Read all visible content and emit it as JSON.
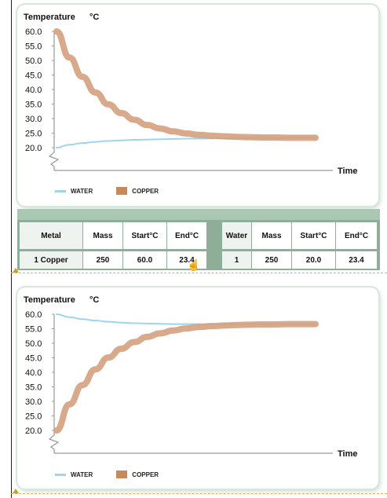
{
  "charts": [
    {
      "ylabel": "Temperature",
      "unit": "°C",
      "xlabel": "Time",
      "yticks": [
        "60.0",
        "55.0",
        "50.0",
        "45.0",
        "40.0",
        "35.0",
        "30.0",
        "25.0",
        "20.0"
      ],
      "legend": {
        "water": "WATER",
        "copper": "COPPER"
      }
    },
    {
      "ylabel": "Temperature",
      "unit": "°C",
      "xlabel": "Time",
      "yticks": [
        "60.0",
        "55.0",
        "50.0",
        "45.0",
        "40.0",
        "35.0",
        "30.0",
        "25.0",
        "20.0"
      ],
      "legend": {
        "water": "WATER",
        "copper": "COPPER"
      }
    }
  ],
  "chart_data": [
    {
      "type": "line",
      "ylabel": "Temperature °C",
      "xlabel": "Time",
      "ylim": [
        20,
        60
      ],
      "series": [
        {
          "name": "WATER",
          "color": "#9fd4ec",
          "x": [
            0,
            1,
            2,
            3,
            4,
            5,
            6,
            7,
            8,
            9,
            10,
            11,
            12,
            13,
            14,
            15,
            16,
            17,
            18,
            19,
            20
          ],
          "values": [
            20.0,
            21.0,
            21.6,
            22.0,
            22.3,
            22.5,
            22.7,
            22.8,
            22.9,
            23.0,
            23.1,
            23.1,
            23.2,
            23.2,
            23.3,
            23.3,
            23.3,
            23.3,
            23.4,
            23.4,
            23.4
          ]
        },
        {
          "name": "COPPER",
          "color": "#c9885a",
          "x": [
            0,
            1,
            2,
            3,
            4,
            5,
            6,
            7,
            8,
            9,
            10,
            11,
            12,
            13,
            14,
            15,
            16,
            17,
            18,
            19,
            20
          ],
          "values": [
            60.0,
            51.0,
            44.4,
            39.0,
            34.9,
            31.9,
            29.6,
            27.8,
            26.6,
            25.6,
            24.9,
            24.4,
            24.1,
            23.9,
            23.7,
            23.6,
            23.5,
            23.5,
            23.4,
            23.4,
            23.4
          ]
        }
      ]
    },
    {
      "type": "line",
      "ylabel": "Temperature °C",
      "xlabel": "Time",
      "ylim": [
        20,
        60
      ],
      "series": [
        {
          "name": "WATER",
          "color": "#9fd4ec",
          "x": [
            0,
            1,
            2,
            3,
            4,
            5,
            6,
            7,
            8,
            9,
            10,
            11,
            12,
            13,
            14,
            15,
            16,
            17,
            18,
            19,
            20
          ],
          "values": [
            60.0,
            59.0,
            58.3,
            57.8,
            57.4,
            57.1,
            56.9,
            56.8,
            56.7,
            56.6,
            56.6,
            56.6,
            56.6,
            56.6,
            56.6,
            56.6,
            56.6,
            56.6,
            56.6,
            56.6,
            56.6
          ]
        },
        {
          "name": "COPPER",
          "color": "#c9885a",
          "x": [
            0,
            1,
            2,
            3,
            4,
            5,
            6,
            7,
            8,
            9,
            10,
            11,
            12,
            13,
            14,
            15,
            16,
            17,
            18,
            19,
            20
          ],
          "values": [
            20.0,
            29.0,
            35.6,
            41.0,
            45.1,
            48.1,
            50.4,
            52.2,
            53.4,
            54.4,
            55.1,
            55.6,
            55.9,
            56.1,
            56.3,
            56.4,
            56.5,
            56.5,
            56.6,
            56.6,
            56.6
          ]
        }
      ]
    }
  ],
  "table": {
    "metal_headers": [
      "Metal",
      "Mass",
      "Start°C",
      "End°C"
    ],
    "metal_row": [
      "1 Copper",
      "250",
      "60.0",
      "23.4"
    ],
    "water_headers": [
      "Water",
      "Mass",
      "Start°C",
      "End°C"
    ],
    "water_row": [
      "1",
      "250",
      "20.0",
      "23.4"
    ]
  }
}
